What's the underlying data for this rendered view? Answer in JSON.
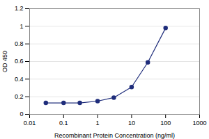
{
  "chart_data": {
    "type": "line",
    "x": [
      0.03,
      0.1,
      0.3,
      1,
      3,
      10,
      30,
      100
    ],
    "values": [
      0.13,
      0.13,
      0.13,
      0.15,
      0.19,
      0.31,
      0.59,
      0.98
    ],
    "color": "#1F2D7B",
    "marker": "circle",
    "xlabel": "Recombinant Protein Concentration (ng/ml)",
    "ylabel": "OD 450",
    "log": "x",
    "xlim": [
      0.01,
      1000
    ],
    "ylim": [
      0,
      1.2
    ],
    "xticks": [
      0.01,
      0.1,
      1,
      10,
      100,
      1000
    ],
    "yticks": [
      0,
      0.2,
      0.4,
      0.6,
      0.8,
      1,
      1.2
    ],
    "grid": "y"
  }
}
